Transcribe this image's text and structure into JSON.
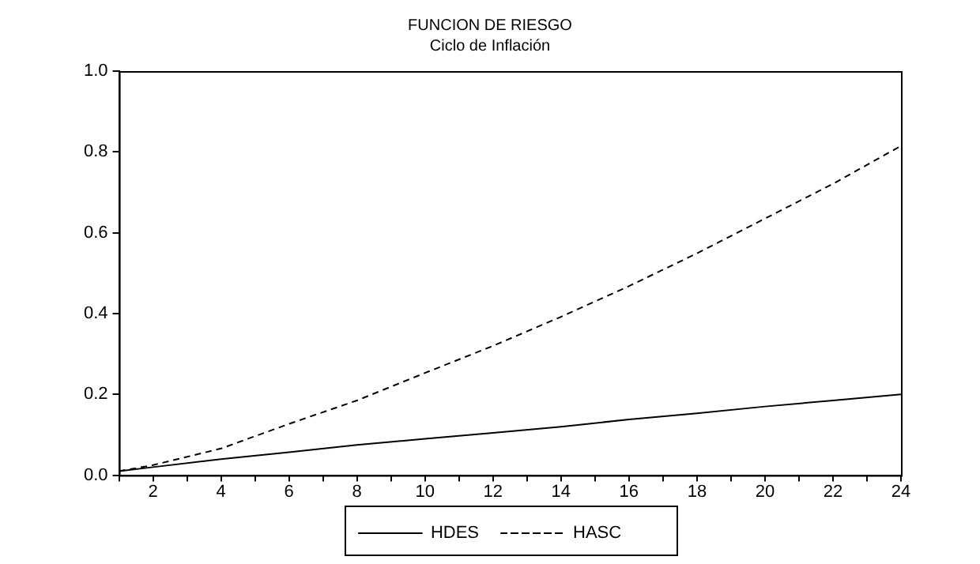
{
  "chart_data": {
    "type": "line",
    "title": "FUNCION DE RIESGO",
    "subtitle": "Ciclo de Inflación",
    "x": [
      1,
      2,
      4,
      6,
      8,
      10,
      12,
      14,
      16,
      18,
      20,
      22,
      24
    ],
    "series": [
      {
        "name": "HDES",
        "color": "#000000",
        "line_style": "solid",
        "values": [
          0.01,
          0.02,
          0.04,
          0.057,
          0.075,
          0.09,
          0.105,
          0.12,
          0.138,
          0.153,
          0.17,
          0.185,
          0.2
        ]
      },
      {
        "name": "HASC",
        "color": "#000000",
        "line_style": "dashed",
        "values": [
          0.01,
          0.025,
          0.066,
          0.127,
          0.185,
          0.253,
          0.32,
          0.392,
          0.468,
          0.549,
          0.635,
          0.721,
          0.815
        ]
      }
    ],
    "xlim": [
      1,
      24
    ],
    "xticks": [
      {
        "value": 1,
        "label": null
      },
      2,
      {
        "value": 3,
        "label": null
      },
      4,
      {
        "value": 5,
        "label": null
      },
      6,
      {
        "value": 7,
        "label": null
      },
      8,
      {
        "value": 9,
        "label": null
      },
      10,
      {
        "value": 11,
        "label": null
      },
      12,
      {
        "value": 13,
        "label": null
      },
      14,
      {
        "value": 15,
        "label": null
      },
      16,
      {
        "value": 17,
        "label": null
      },
      18,
      {
        "value": 19,
        "label": null
      },
      20,
      {
        "value": 21,
        "label": null
      },
      22,
      {
        "value": 23,
        "label": null
      },
      24
    ],
    "ylim": [
      0,
      1
    ],
    "yticks": [
      {
        "value": 0,
        "label": "0.0"
      },
      0.2,
      0.4,
      0.6,
      0.8,
      {
        "value": 1,
        "label": "1.0"
      }
    ],
    "grid": false,
    "legend": "bottom",
    "marker": "none"
  }
}
